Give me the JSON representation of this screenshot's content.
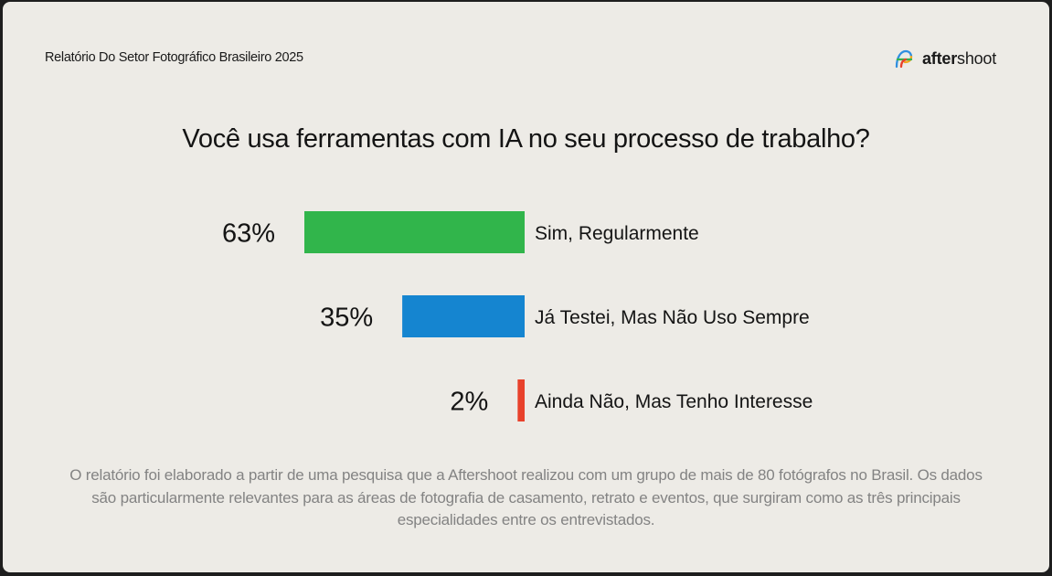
{
  "header": {
    "report_title": "Relatório Do Setor Fotográfico Brasileiro 2025",
    "brand_name_bold": "after",
    "brand_name_regular": "shoot",
    "brand_logo_icon": "aftershoot-logo-icon"
  },
  "chart_data": {
    "type": "bar",
    "orientation": "horizontal",
    "title": "Você usa ferramentas com IA no seu processo de trabalho?",
    "categories": [
      "Sim, Regularmente",
      "Já Testei, Mas Não Uso Sempre",
      "Ainda Não, Mas Tenho Interesse"
    ],
    "values": [
      63,
      35,
      2
    ],
    "value_labels": [
      "63%",
      "35%",
      "2%"
    ],
    "colors": [
      "#31b54b",
      "#1585d0",
      "#e8412b"
    ],
    "xlim": [
      0,
      63
    ],
    "grid": false,
    "legend": "none"
  },
  "footnote": "O relatório foi elaborado a partir de uma pesquisa que a Aftershoot realizou com um grupo de mais de 80 fotógrafos no Brasil. Os dados são particularmente relevantes para as áreas de fotografia de casamento, retrato e eventos, que surgiram como as três principais especialidades entre os entrevistados."
}
